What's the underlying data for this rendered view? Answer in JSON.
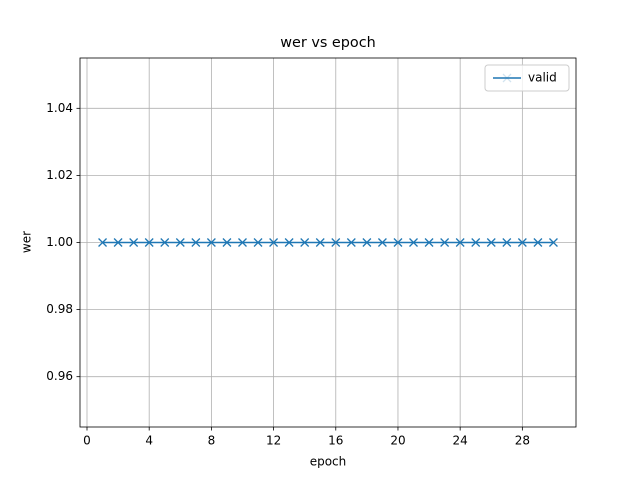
{
  "chart_data": {
    "type": "line",
    "title": "wer vs epoch",
    "xlabel": "epoch",
    "ylabel": "wer",
    "x": [
      1,
      2,
      3,
      4,
      5,
      6,
      7,
      8,
      9,
      10,
      11,
      12,
      13,
      14,
      15,
      16,
      17,
      18,
      19,
      20,
      21,
      22,
      23,
      24,
      25,
      26,
      27,
      28,
      29,
      30
    ],
    "series": [
      {
        "name": "valid",
        "color": "#1f77b4",
        "marker": "x",
        "values": [
          1,
          1,
          1,
          1,
          1,
          1,
          1,
          1,
          1,
          1,
          1,
          1,
          1,
          1,
          1,
          1,
          1,
          1,
          1,
          1,
          1,
          1,
          1,
          1,
          1,
          1,
          1,
          1,
          1,
          1
        ]
      }
    ],
    "xlim": [
      -0.45,
      31.45
    ],
    "xticks": [
      0,
      4,
      8,
      12,
      16,
      20,
      24,
      28
    ],
    "ylim": [
      0.945,
      1.055
    ],
    "yticks": [
      0.96,
      0.98,
      {
        "value": 1,
        "label": "1.00"
      },
      1.02,
      1.04
    ],
    "grid": true,
    "legend": "upper right"
  }
}
